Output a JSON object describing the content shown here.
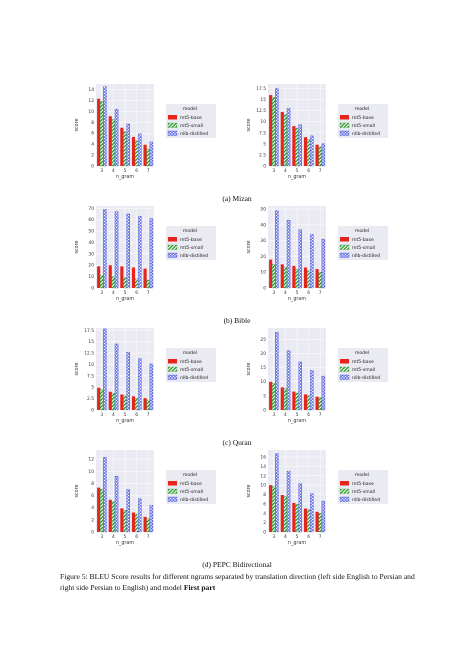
{
  "legend": {
    "title": "model",
    "items": [
      {
        "label": "mt5-base",
        "color": "#e8231b",
        "pattern": "solid"
      },
      {
        "label": "mt5-small",
        "color": "#2e9a2e",
        "pattern": "hatch"
      },
      {
        "label": "nllb-distilled",
        "color": "#2b3bd6",
        "pattern": "circles"
      }
    ]
  },
  "axis_labels": {
    "x": "n_gram",
    "y": "score"
  },
  "subcaptions": [
    "(a) Mizan",
    "(b) Bible",
    "(c) Quran",
    "(d) PEPC Bidirectional"
  ],
  "caption": {
    "text": "Figure 5: BLEU Score results for different ngrams separated by translation direction (left side English to Persian and right side Persian to English) and model ",
    "bold": "First part"
  },
  "chart_data": [
    {
      "type": "bar",
      "row": 0,
      "col": 0,
      "categories": [
        "3",
        "4",
        "5",
        "6",
        "7"
      ],
      "ylim": [
        0,
        15
      ],
      "yticks": [
        0,
        2,
        4,
        6,
        8,
        10,
        12,
        14
      ],
      "series": [
        {
          "name": "mt5-base",
          "values": [
            12.3,
            9.1,
            7.0,
            5.3,
            3.9
          ]
        },
        {
          "name": "mt5-small",
          "values": [
            11.8,
            8.5,
            6.3,
            4.6,
            3.1
          ]
        },
        {
          "name": "nllb-distilled",
          "values": [
            14.5,
            10.4,
            7.7,
            5.9,
            4.4
          ]
        }
      ]
    },
    {
      "type": "bar",
      "row": 0,
      "col": 1,
      "categories": [
        "3",
        "4",
        "5",
        "6",
        "7"
      ],
      "ylim": [
        0,
        18.5
      ],
      "yticks": [
        0,
        2.5,
        5,
        7.5,
        10,
        12.5,
        15,
        17.5
      ],
      "series": [
        {
          "name": "mt5-base",
          "values": [
            16.0,
            12.2,
            9.0,
            6.5,
            4.8
          ]
        },
        {
          "name": "mt5-small",
          "values": [
            15.5,
            11.6,
            8.5,
            6.0,
            4.3
          ]
        },
        {
          "name": "nllb-distilled",
          "values": [
            17.5,
            13.0,
            9.3,
            6.8,
            5.0
          ]
        }
      ]
    },
    {
      "type": "bar",
      "row": 1,
      "col": 0,
      "categories": [
        "3",
        "4",
        "5",
        "6",
        "7"
      ],
      "ylim": [
        0,
        72
      ],
      "yticks": [
        0,
        10,
        20,
        30,
        40,
        50,
        60,
        70
      ],
      "series": [
        {
          "name": "mt5-base",
          "values": [
            19,
            20,
            19,
            18,
            17
          ]
        },
        {
          "name": "mt5-small",
          "values": [
            11,
            10,
            9,
            8,
            7
          ]
        },
        {
          "name": "nllb-distilled",
          "values": [
            69,
            67,
            65,
            63,
            61
          ]
        }
      ]
    },
    {
      "type": "bar",
      "row": 1,
      "col": 1,
      "categories": [
        "3",
        "4",
        "5",
        "6",
        "7"
      ],
      "ylim": [
        0,
        52
      ],
      "yticks": [
        0,
        10,
        20,
        30,
        40,
        50
      ],
      "series": [
        {
          "name": "mt5-base",
          "values": [
            18,
            15,
            14,
            13,
            12
          ]
        },
        {
          "name": "mt5-small",
          "values": [
            15,
            13,
            12,
            11,
            10
          ]
        },
        {
          "name": "nllb-distilled",
          "values": [
            49,
            43,
            37,
            34,
            31
          ]
        }
      ]
    },
    {
      "type": "bar",
      "row": 2,
      "col": 0,
      "categories": [
        "3",
        "4",
        "5",
        "6",
        "7"
      ],
      "ylim": [
        0,
        18
      ],
      "yticks": [
        0,
        2.5,
        5,
        7.5,
        10,
        12.5,
        15,
        17.5
      ],
      "series": [
        {
          "name": "mt5-base",
          "values": [
            4.9,
            4.0,
            3.4,
            3.0,
            2.6
          ]
        },
        {
          "name": "mt5-small",
          "values": [
            4.5,
            3.7,
            3.1,
            2.6,
            2.2
          ]
        },
        {
          "name": "nllb-distilled",
          "values": [
            17.8,
            14.5,
            12.7,
            11.3,
            10.1
          ]
        }
      ]
    },
    {
      "type": "bar",
      "row": 2,
      "col": 1,
      "categories": [
        "3",
        "4",
        "5",
        "6",
        "7"
      ],
      "ylim": [
        0,
        29
      ],
      "yticks": [
        0,
        5,
        10,
        15,
        20,
        25
      ],
      "series": [
        {
          "name": "mt5-base",
          "values": [
            10.0,
            8.0,
            6.5,
            5.5,
            4.7
          ]
        },
        {
          "name": "mt5-small",
          "values": [
            9.5,
            7.5,
            6.0,
            5.1,
            4.3
          ]
        },
        {
          "name": "nllb-distilled",
          "values": [
            27.5,
            21.0,
            17.0,
            14.0,
            12.0
          ]
        }
      ]
    },
    {
      "type": "bar",
      "row": 3,
      "col": 0,
      "categories": [
        "3",
        "4",
        "5",
        "6",
        "7"
      ],
      "ylim": [
        0,
        13.5
      ],
      "yticks": [
        0,
        2,
        4,
        6,
        8,
        10,
        12
      ],
      "series": [
        {
          "name": "mt5-base",
          "values": [
            7.3,
            5.3,
            3.9,
            3.2,
            2.5
          ]
        },
        {
          "name": "mt5-small",
          "values": [
            7.0,
            5.0,
            3.6,
            2.9,
            2.2
          ]
        },
        {
          "name": "nllb-distilled",
          "values": [
            12.3,
            9.2,
            7.0,
            5.5,
            4.4
          ]
        }
      ]
    },
    {
      "type": "bar",
      "row": 3,
      "col": 1,
      "categories": [
        "3",
        "4",
        "5",
        "6",
        "7"
      ],
      "ylim": [
        0,
        17.5
      ],
      "yticks": [
        0,
        2,
        4,
        6,
        8,
        10,
        12,
        14,
        16
      ],
      "series": [
        {
          "name": "mt5-base",
          "values": [
            10.0,
            7.9,
            6.2,
            5.0,
            4.3
          ]
        },
        {
          "name": "mt5-small",
          "values": [
            9.7,
            7.6,
            5.9,
            4.8,
            4.0
          ]
        },
        {
          "name": "nllb-distilled",
          "values": [
            16.7,
            13.0,
            10.3,
            8.2,
            6.6
          ]
        }
      ]
    }
  ]
}
